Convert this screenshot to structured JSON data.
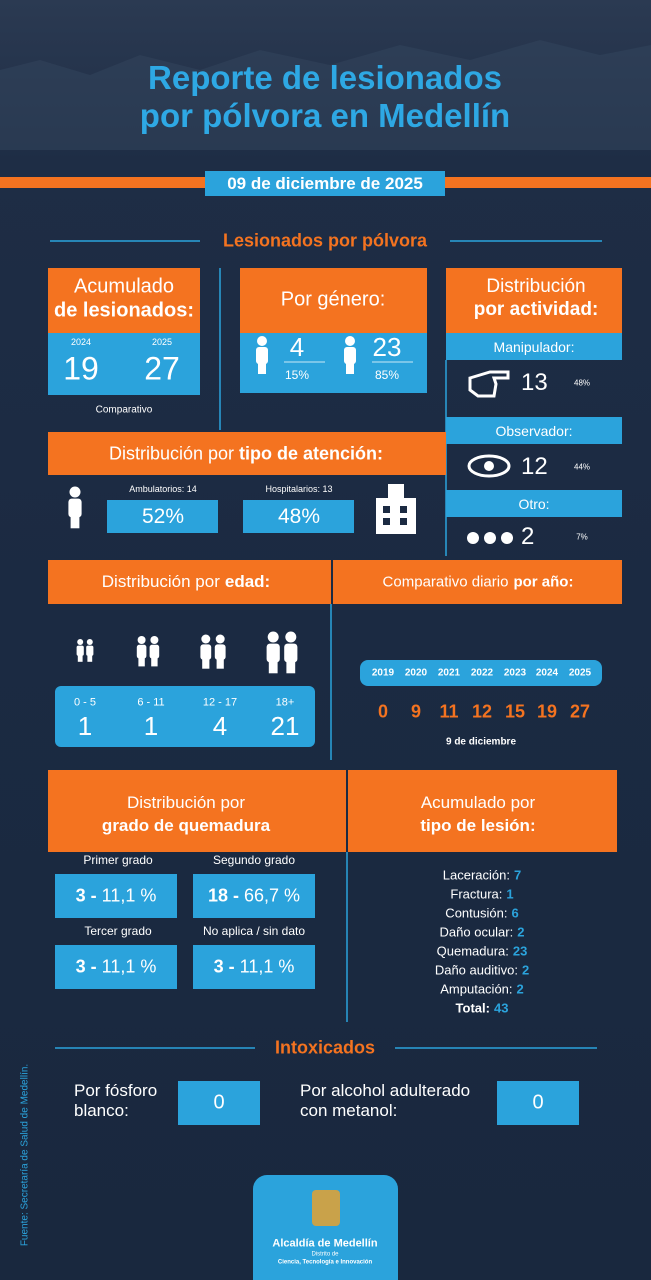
{
  "header": {
    "title": [
      "Reporte de lesionados",
      "por pólvora en Medellín"
    ],
    "date": "09 de diciembre de 2025"
  },
  "injured": {
    "heading": "Lesionados por pólvora",
    "accumulated": {
      "title": "Acumulado",
      "title_bold": "de lesionados:",
      "years": [
        {
          "label": "2024",
          "value": "19"
        },
        {
          "label": "2025",
          "value": "27"
        }
      ],
      "caption": "Comparativo"
    },
    "gender": {
      "title": "Por género:",
      "groups": [
        {
          "value": "4",
          "percent": "15%"
        },
        {
          "value": "23",
          "percent": "85%"
        }
      ]
    },
    "activity": {
      "title": "Distribución",
      "title_bold": "por actividad:",
      "groups": [
        {
          "label": "Manipulador:",
          "value": "13",
          "percent": "48%"
        },
        {
          "label": "Observador:",
          "value": "12",
          "percent": "44%"
        },
        {
          "label": "Otro:",
          "value": "2",
          "percent": "7%"
        }
      ]
    },
    "attention": {
      "title": "Distribución por",
      "title_bold": "tipo de atención:",
      "groups": [
        {
          "label": "Ambulatorios: 14",
          "percent": "52%"
        },
        {
          "label": "Hospitalarios: 13",
          "percent": "48%"
        }
      ]
    },
    "age": {
      "title": "Distribución por",
      "title_bold": "edad:",
      "groups": [
        {
          "range": "0 - 5",
          "value": "1"
        },
        {
          "range": "6 - 11",
          "value": "1"
        },
        {
          "range": "12 - 17",
          "value": "4"
        },
        {
          "range": "18+",
          "value": "21"
        }
      ]
    },
    "daily": {
      "title": "Comparativo diario",
      "title_bold": "por año:",
      "years": [
        "2019",
        "2020",
        "2021",
        "2022",
        "2023",
        "2024",
        "2025"
      ],
      "values": [
        "0",
        "9",
        "11",
        "12",
        "15",
        "19",
        "27"
      ],
      "caption": "9 de diciembre"
    },
    "burns": {
      "title": "Distribución por",
      "title_bold": "grado de quemadura",
      "groups": [
        {
          "label": "Primer grado",
          "count": "3 -",
          "percent": "11,1 %"
        },
        {
          "label": "Segundo grado",
          "count": "18 -",
          "percent": "66,7 %"
        },
        {
          "label": "Tercer grado",
          "count": "3 -",
          "percent": "11,1 %"
        },
        {
          "label": "No aplica / sin dato",
          "count": "3 -",
          "percent": "11,1 %"
        }
      ]
    },
    "lesion_types": {
      "title": "Acumulado por",
      "title_bold": "tipo de lesión:",
      "items": [
        {
          "label": "Laceración:",
          "value": "7"
        },
        {
          "label": "Fractura:",
          "value": "1"
        },
        {
          "label": "Contusión:",
          "value": "6"
        },
        {
          "label": "Daño ocular:",
          "value": "2"
        },
        {
          "label": "Quemadura:",
          "value": "23"
        },
        {
          "label": "Daño auditivo:",
          "value": "2"
        },
        {
          "label": "Amputación:",
          "value": "2"
        },
        {
          "label": "Total:",
          "value": "43"
        }
      ]
    }
  },
  "intoxicated": {
    "heading": "Intoxicados",
    "items": [
      {
        "label": [
          "Por fósforo",
          "blanco:"
        ],
        "value": "0"
      },
      {
        "label": [
          "Por alcohol adulterado",
          "con metanol:"
        ],
        "value": "0"
      }
    ]
  },
  "source": "Fuente: Secretaría de Salud de Medellín.",
  "logo": {
    "name": "Alcaldía de Medellín",
    "line1": "Distrito de",
    "line2": "Ciencia, Tecnología e Innovación"
  }
}
